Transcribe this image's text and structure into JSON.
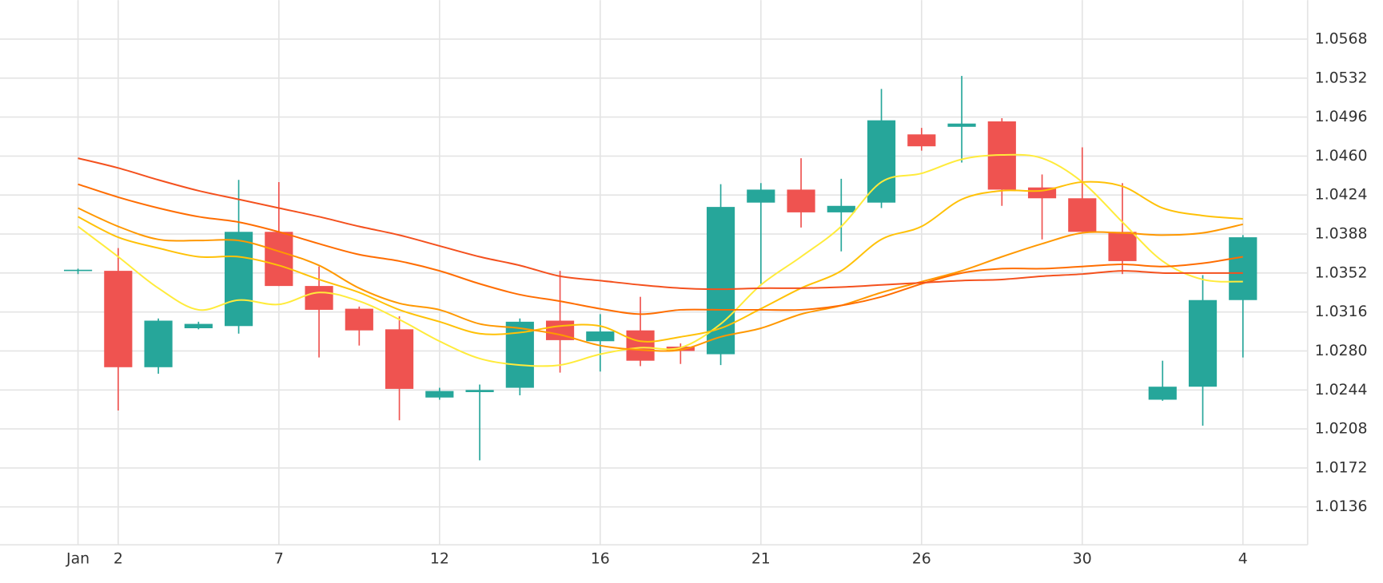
{
  "chart_data": {
    "type": "candlestick",
    "categories": [
      "Jan",
      "2",
      null,
      null,
      null,
      "7",
      null,
      null,
      null,
      "12",
      null,
      null,
      null,
      "16",
      null,
      null,
      null,
      "21",
      null,
      null,
      null,
      "26",
      null,
      null,
      null,
      "30",
      null,
      null,
      null,
      "4"
    ],
    "open": [
      1.0354,
      1.0354,
      1.0265,
      1.0301,
      1.0303,
      1.039,
      1.034,
      1.0319,
      1.03,
      1.0237,
      1.0242,
      1.0246,
      1.0308,
      1.0289,
      1.0299,
      1.0284,
      1.0277,
      1.0417,
      1.0429,
      1.0408,
      1.0417,
      1.048,
      1.0487,
      1.0492,
      1.0431,
      1.0421,
      1.039,
      1.0235,
      1.0247,
      1.0327
    ],
    "high": [
      1.0356,
      1.0375,
      1.031,
      1.0307,
      1.0438,
      1.0436,
      1.0358,
      1.0321,
      1.0312,
      1.0246,
      1.0249,
      1.031,
      1.0354,
      1.0314,
      1.033,
      1.0287,
      1.0434,
      1.0435,
      1.0458,
      1.0439,
      1.0522,
      1.0486,
      1.0534,
      1.0495,
      1.0443,
      1.0468,
      1.0435,
      1.0271,
      1.035,
      1.0387
    ],
    "low": [
      1.0351,
      1.0225,
      1.0259,
      1.03,
      1.0296,
      1.034,
      1.0274,
      1.0285,
      1.0216,
      1.0235,
      1.0179,
      1.0239,
      1.026,
      1.0261,
      1.0266,
      1.0268,
      1.0267,
      1.0342,
      1.0394,
      1.0372,
      1.0412,
      1.0465,
      1.0454,
      1.0414,
      1.0383,
      1.039,
      1.0351,
      1.0234,
      1.0211,
      1.0274
    ],
    "close": [
      1.0355,
      1.0265,
      1.0308,
      1.0305,
      1.039,
      1.034,
      1.0318,
      1.0299,
      1.0245,
      1.0243,
      1.0244,
      1.0307,
      1.029,
      1.0298,
      1.0271,
      1.028,
      1.0413,
      1.0429,
      1.0408,
      1.0414,
      1.0493,
      1.0469,
      1.049,
      1.0429,
      1.0421,
      1.039,
      1.0363,
      1.0247,
      1.0327,
      1.0385
    ],
    "up_color": "#26a69a",
    "down_color": "#ef5350",
    "overlays": [
      {
        "color": "#ffeb3b",
        "values": [
          1.0395,
          1.0367,
          1.0338,
          1.0318,
          1.0327,
          1.0323,
          1.0334,
          1.0326,
          1.0309,
          1.0289,
          1.0273,
          1.0267,
          1.0267,
          1.0277,
          1.0283,
          1.0283,
          1.0305,
          1.0341,
          1.0367,
          1.0395,
          1.0436,
          1.0444,
          1.0457,
          1.0461,
          1.0458,
          1.0436,
          1.0399,
          1.0363,
          1.0346,
          1.0344
        ]
      },
      {
        "color": "#ffc107",
        "values": [
          1.0404,
          1.0385,
          1.0375,
          1.0367,
          1.0367,
          1.0359,
          1.0346,
          1.0334,
          1.0318,
          1.0307,
          1.0296,
          1.0297,
          1.0303,
          1.0303,
          1.0289,
          1.0293,
          1.0301,
          1.0319,
          1.0338,
          1.0354,
          1.0383,
          1.0395,
          1.042,
          1.0428,
          1.0428,
          1.0436,
          1.0432,
          1.0412,
          1.0405,
          1.0402
        ]
      },
      {
        "color": "#ff9800",
        "values": [
          1.0412,
          1.0395,
          1.0383,
          1.0382,
          1.0382,
          1.0372,
          1.0359,
          1.0338,
          1.0324,
          1.0318,
          1.0305,
          1.0301,
          1.0295,
          1.0285,
          1.0281,
          1.0281,
          1.0293,
          1.0301,
          1.0314,
          1.0322,
          1.0334,
          1.0344,
          1.0354,
          1.0367,
          1.0379,
          1.0389,
          1.0389,
          1.0387,
          1.0389,
          1.0397
        ]
      },
      {
        "color": "#ff6d00",
        "values": [
          1.0434,
          1.0422,
          1.0412,
          1.0404,
          1.0399,
          1.039,
          1.0379,
          1.0369,
          1.0363,
          1.0354,
          1.0342,
          1.0332,
          1.0326,
          1.0319,
          1.0314,
          1.0318,
          1.0318,
          1.0318,
          1.0318,
          1.0322,
          1.033,
          1.0342,
          1.0352,
          1.0356,
          1.0356,
          1.0358,
          1.036,
          1.0358,
          1.0361,
          1.0367
        ]
      },
      {
        "color": "#f4511e",
        "values": [
          1.0458,
          1.0449,
          1.0438,
          1.0428,
          1.042,
          1.0412,
          1.0404,
          1.0395,
          1.0387,
          1.0377,
          1.0367,
          1.0359,
          1.0349,
          1.0345,
          1.0341,
          1.0338,
          1.0337,
          1.0338,
          1.0338,
          1.0339,
          1.0341,
          1.0343,
          1.0345,
          1.0346,
          1.0349,
          1.0351,
          1.0354,
          1.0352,
          1.0352,
          1.0352
        ]
      }
    ],
    "ylim": [
      1.0101,
      1.0604
    ],
    "yticks": [
      1.0136,
      1.0172,
      1.0208,
      1.0244,
      {
        "value": 1.028,
        "label": "1.0280"
      },
      1.0316,
      1.0352,
      1.0388,
      1.0424,
      {
        "value": 1.046,
        "label": "1.0460"
      },
      1.0496,
      1.0532,
      1.0568
    ],
    "grid": true
  }
}
